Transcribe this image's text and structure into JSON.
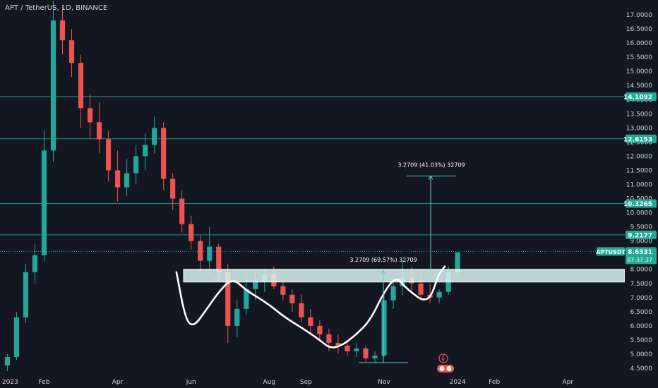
{
  "header": {
    "symbol_title": "APT / TetherUS, 1D, BINANCE"
  },
  "colors": {
    "background": "#131722",
    "up": "#26a69a",
    "down": "#ef5350",
    "hline": "#1f8f82",
    "zone_fill": "#d9f4f1",
    "zone_border": "#ffffff",
    "axis_text": "#d1d4dc",
    "price_tag": "#22ab94",
    "pattern": "#ffffff"
  },
  "chart_data": {
    "type": "candlestick",
    "title": "APT / TetherUS, 1D, BINANCE",
    "yaxis": {
      "ylim": [
        4.3,
        17.4
      ],
      "ticks": [
        "4.5000",
        "5.0000",
        "5.5000",
        "6.0000",
        "6.5000",
        "7.0000",
        "7.5000",
        "8.0000",
        "8.5000",
        "9.0000",
        "9.5000",
        "10.0000",
        "10.5000",
        "11.0000",
        "11.5000",
        "12.0000",
        "12.5000",
        "13.0000",
        "13.5000",
        "14.0000",
        "14.5000",
        "15.0000",
        "15.5000",
        "16.0000",
        "16.5000",
        "17.0000"
      ]
    },
    "xaxis": {
      "labels": [
        {
          "text": "2023",
          "x": 0.3
        },
        {
          "text": "Feb",
          "x": 4
        },
        {
          "text": "Apr",
          "x": 12
        },
        {
          "text": "Jun",
          "x": 20
        },
        {
          "text": "Aug",
          "x": 28.5
        },
        {
          "text": "Sep",
          "x": 32.5
        },
        {
          "text": "Nov",
          "x": 41
        },
        {
          "text": "2024",
          "x": 49
        },
        {
          "text": "Feb",
          "x": 53
        },
        {
          "text": "Apr",
          "x": 61
        }
      ],
      "range": [
        -0.8,
        67.2
      ]
    },
    "ohlc": [
      [
        4.6,
        5.0,
        4.4,
        4.9
      ],
      [
        4.9,
        6.5,
        4.8,
        6.3
      ],
      [
        6.3,
        8.2,
        6.1,
        7.9
      ],
      [
        7.9,
        8.9,
        7.5,
        8.5
      ],
      [
        8.5,
        12.9,
        8.3,
        12.2
      ],
      [
        12.2,
        17.5,
        11.8,
        16.8
      ],
      [
        16.8,
        17.3,
        15.6,
        16.1
      ],
      [
        16.1,
        16.5,
        14.8,
        15.3
      ],
      [
        15.3,
        15.6,
        13.0,
        13.7
      ],
      [
        13.7,
        14.2,
        12.6,
        13.2
      ],
      [
        13.2,
        13.9,
        12.1,
        12.6
      ],
      [
        12.6,
        12.9,
        11.1,
        11.5
      ],
      [
        11.5,
        12.2,
        10.4,
        10.9
      ],
      [
        10.9,
        11.9,
        10.6,
        11.4
      ],
      [
        11.4,
        12.4,
        11.0,
        12.0
      ],
      [
        12.0,
        12.8,
        11.5,
        12.4
      ],
      [
        12.4,
        13.4,
        12.1,
        13.0
      ],
      [
        13.0,
        13.2,
        10.8,
        11.2
      ],
      [
        11.2,
        11.4,
        10.1,
        10.5
      ],
      [
        10.5,
        10.8,
        9.3,
        9.6
      ],
      [
        9.6,
        9.9,
        8.7,
        9.0
      ],
      [
        9.0,
        9.2,
        7.9,
        8.3
      ],
      [
        8.3,
        9.5,
        7.8,
        8.8
      ],
      [
        8.8,
        8.9,
        7.6,
        7.9
      ],
      [
        7.9,
        8.2,
        5.4,
        6.0
      ],
      [
        6.0,
        6.9,
        5.6,
        6.6
      ],
      [
        6.6,
        7.9,
        6.4,
        7.3
      ],
      [
        7.3,
        7.9,
        6.9,
        7.6
      ],
      [
        7.6,
        8.0,
        7.2,
        7.8
      ],
      [
        7.8,
        8.1,
        7.3,
        7.4
      ],
      [
        7.4,
        7.6,
        6.9,
        7.1
      ],
      [
        7.1,
        7.3,
        6.5,
        6.8
      ],
      [
        6.8,
        7.1,
        6.1,
        6.3
      ],
      [
        6.3,
        6.6,
        5.7,
        6.0
      ],
      [
        6.0,
        6.2,
        5.5,
        5.7
      ],
      [
        5.7,
        5.9,
        5.1,
        5.4
      ],
      [
        5.4,
        5.7,
        5.0,
        5.3
      ],
      [
        5.3,
        5.5,
        4.95,
        5.1
      ],
      [
        5.1,
        5.4,
        4.9,
        5.2
      ],
      [
        5.2,
        5.3,
        4.75,
        4.85
      ],
      [
        4.85,
        5.1,
        4.7,
        4.95
      ],
      [
        4.95,
        7.1,
        4.9,
        6.9
      ],
      [
        6.9,
        7.6,
        6.6,
        7.4
      ],
      [
        7.4,
        8.3,
        7.1,
        7.7
      ],
      [
        7.7,
        8.1,
        7.2,
        7.5
      ],
      [
        7.5,
        7.8,
        6.9,
        7.1
      ],
      [
        7.1,
        7.5,
        6.8,
        7.0
      ],
      [
        7.0,
        7.3,
        6.8,
        7.2
      ],
      [
        7.2,
        8.1,
        7.1,
        7.9
      ],
      [
        7.9,
        8.6,
        7.8,
        8.6
      ]
    ],
    "horizontal_levels": [
      {
        "value": 14.1092,
        "label": "14.1092"
      },
      {
        "value": 12.6153,
        "label": "12.6153"
      },
      {
        "value": 10.3265,
        "label": "10.3265"
      },
      {
        "value": 9.2177,
        "label": "9.2177"
      }
    ],
    "zone": {
      "top": 8.0,
      "bottom": 7.55
    },
    "current_price": {
      "symbol": "APTUSDT",
      "value": "8.6331",
      "countdown": "07:37:37"
    },
    "measurements": [
      {
        "text": "3.2709 (41.03%) 32709",
        "base": 8.0,
        "target": 11.3
      },
      {
        "text": "3.2709 (69.57%) 32709",
        "base": 4.7,
        "target": 7.97
      }
    ],
    "pattern_path": [
      [
        18.4,
        7.9
      ],
      [
        19.4,
        6.2
      ],
      [
        20.3,
        5.97
      ],
      [
        21.5,
        6.5
      ],
      [
        23,
        7.2
      ],
      [
        24.5,
        7.7
      ],
      [
        26,
        7.25
      ],
      [
        28.3,
        6.8
      ],
      [
        30.2,
        6.3
      ],
      [
        32.2,
        5.9
      ],
      [
        34,
        5.5
      ],
      [
        35.1,
        5.2
      ],
      [
        36.4,
        5.3
      ],
      [
        38,
        5.7
      ],
      [
        39.5,
        6.2
      ],
      [
        41,
        7.2
      ],
      [
        42.3,
        7.75
      ],
      [
        43.2,
        7.4
      ],
      [
        44.3,
        7.1
      ],
      [
        45.2,
        6.9
      ],
      [
        46.1,
        7.0
      ],
      [
        46.9,
        7.8
      ],
      [
        47.6,
        8.1
      ]
    ]
  }
}
